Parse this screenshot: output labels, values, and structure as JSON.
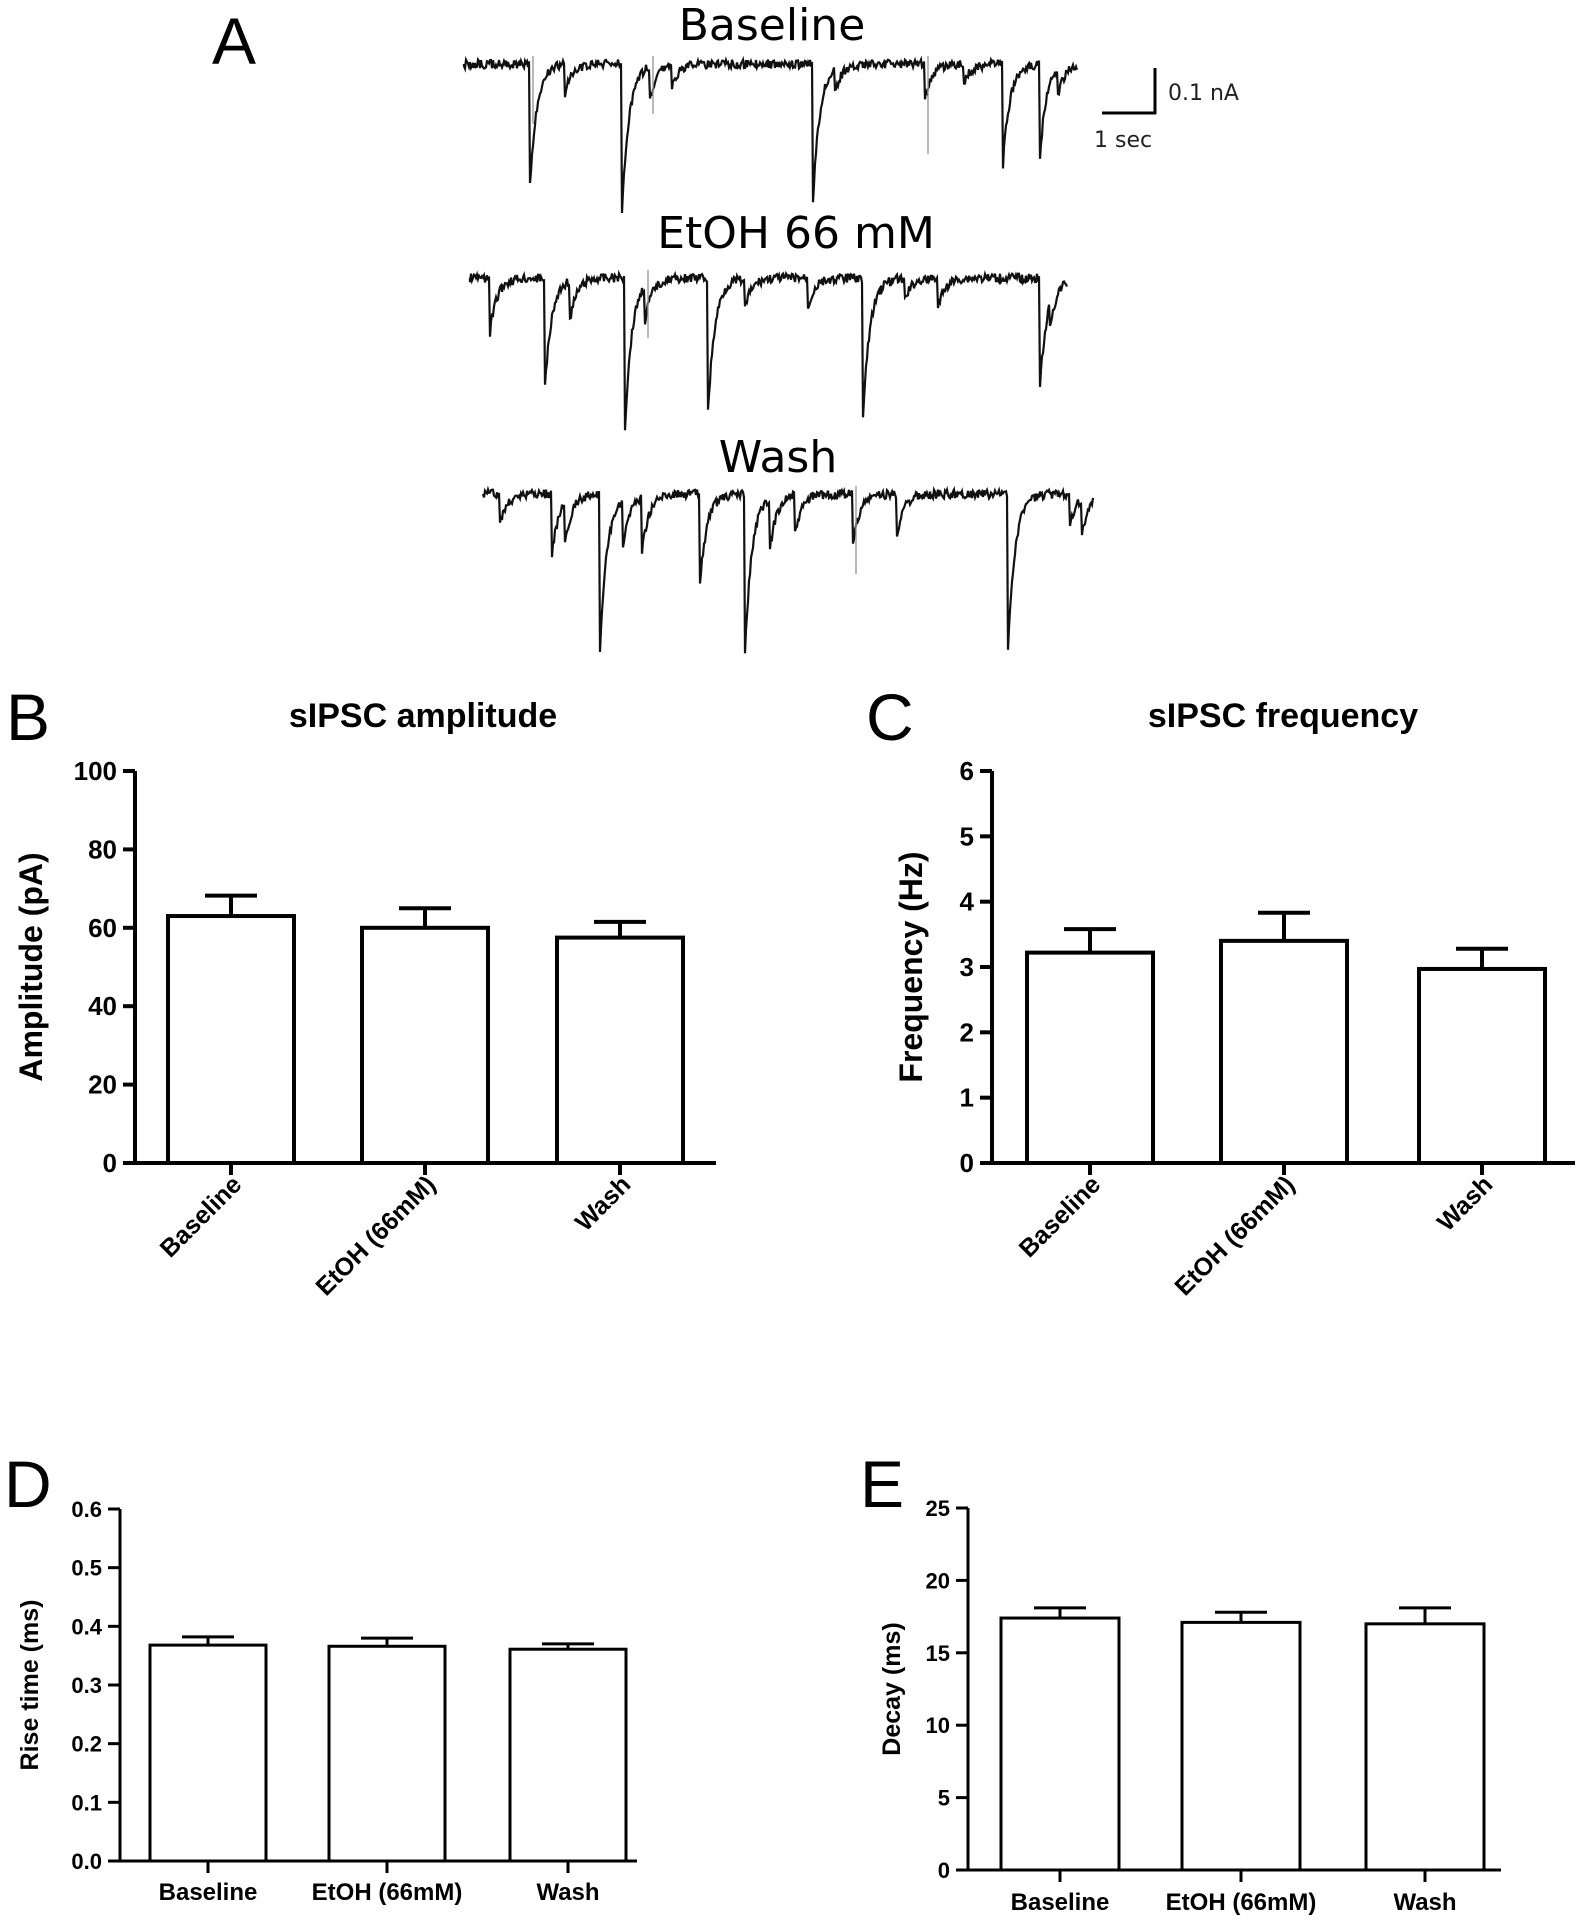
{
  "panel_a": {
    "letter": "A",
    "traces": [
      {
        "label": "Baseline"
      },
      {
        "label": "EtOH 66 mM"
      },
      {
        "label": "Wash"
      }
    ],
    "scale_bar": {
      "vertical": "0.1 nA",
      "horizontal": "1 sec"
    }
  },
  "chart_data": [
    {
      "panel": "B",
      "type": "bar",
      "title": "sIPSC amplitude",
      "xlabel": "",
      "ylabel": "Amplitude (pA)",
      "categories": [
        "Baseline",
        "EtOH (66mM)",
        "Wash"
      ],
      "values": [
        63,
        60,
        57.5
      ],
      "errors": [
        5.2,
        5,
        4
      ],
      "ylim": [
        0,
        100
      ],
      "yticks": [
        "0",
        "20",
        "40",
        "60",
        "80",
        "100"
      ],
      "category_label_rotation": "rotated",
      "grid": false
    },
    {
      "panel": "C",
      "type": "bar",
      "title": "sIPSC frequency",
      "xlabel": "",
      "ylabel": "Frequency (Hz)",
      "categories": [
        "Baseline",
        "EtOH (66mM)",
        "Wash"
      ],
      "values": [
        3.22,
        3.4,
        2.97
      ],
      "errors": [
        0.36,
        0.43,
        0.31
      ],
      "ylim": [
        0,
        6
      ],
      "yticks": [
        "0",
        "1",
        "2",
        "3",
        "4",
        "5",
        "6"
      ],
      "category_label_rotation": "rotated",
      "grid": false
    },
    {
      "panel": "D",
      "type": "bar",
      "title": "",
      "xlabel": "",
      "ylabel": "Rise time (ms)",
      "categories": [
        "Baseline",
        "EtOH (66mM)",
        "Wash"
      ],
      "values": [
        0.368,
        0.366,
        0.361
      ],
      "errors": [
        0.014,
        0.014,
        0.009
      ],
      "ylim": [
        0,
        0.6
      ],
      "yticks": [
        "0.0",
        "0.1",
        "0.2",
        "0.3",
        "0.4",
        "0.5",
        "0.6"
      ],
      "category_label_rotation": "horizontal",
      "grid": false
    },
    {
      "panel": "E",
      "type": "bar",
      "title": "",
      "xlabel": "",
      "ylabel": "Decay (ms)",
      "categories": [
        "Baseline",
        "EtOH (66mM)",
        "Wash"
      ],
      "values": [
        17.4,
        17.1,
        17.0
      ],
      "errors": [
        0.7,
        0.7,
        1.1
      ],
      "ylim": [
        0,
        25
      ],
      "yticks": [
        "0",
        "5",
        "10",
        "15",
        "20",
        "25"
      ],
      "category_label_rotation": "horizontal",
      "grid": false
    }
  ]
}
